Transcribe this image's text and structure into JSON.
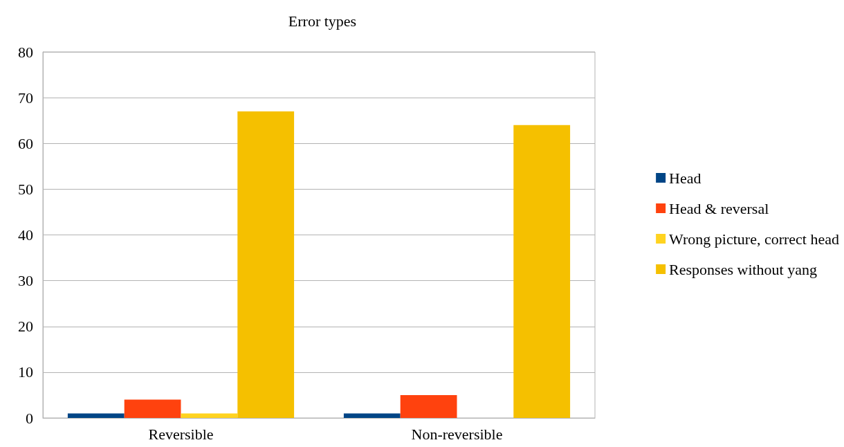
{
  "chart_data": {
    "type": "bar",
    "title": "Error types",
    "categories": [
      "Reversible",
      "Non-reversible"
    ],
    "series": [
      {
        "name": "Head",
        "color": "#004586",
        "values": [
          1,
          1
        ]
      },
      {
        "name": "Head & reversal",
        "color": "#ff420e",
        "values": [
          4,
          5
        ]
      },
      {
        "name": "Wrong picture, correct head",
        "color": "#ffd320",
        "values": [
          1,
          0
        ]
      },
      {
        "name": "Responses without yang",
        "color": "#f5c000",
        "values": [
          67,
          64
        ]
      }
    ],
    "ylim": [
      0,
      80
    ],
    "yticks": [
      0,
      10,
      20,
      30,
      40,
      50,
      60,
      70,
      80
    ],
    "grid": "y",
    "legend": "right"
  }
}
